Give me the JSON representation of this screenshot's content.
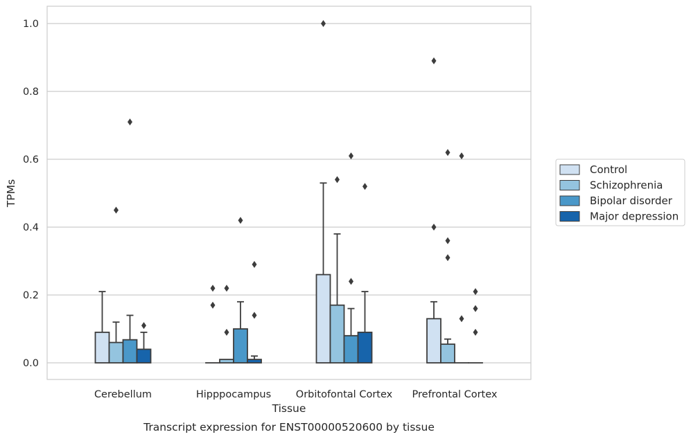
{
  "chart_data": {
    "type": "bar",
    "title": "Transcript expression for ENST00000520600 by tissue",
    "xlabel": "Tissue",
    "ylabel": "TPMs",
    "ylim": [
      -0.048,
      1.05
    ],
    "yticks": [
      0.0,
      0.2,
      0.4,
      0.6,
      0.8,
      1.0
    ],
    "ytick_labels": [
      "0.0",
      "0.2",
      "0.4",
      "0.6",
      "0.8",
      "1.0"
    ],
    "grid": "horizontal",
    "legend_position": "right",
    "categories": [
      "Cerebellum",
      "Hipppocampus",
      "Orbitofontal Cortex",
      "Prefrontal Cortex"
    ],
    "series": [
      {
        "name": "Control",
        "color": "#d0e1f2",
        "values": [
          0.09,
          0.0,
          0.26,
          0.13
        ],
        "whisker_top": [
          0.21,
          0.0,
          0.53,
          0.18
        ],
        "outliers": [
          [],
          [
            0.17,
            0.22
          ],
          [
            1.0
          ],
          [
            0.89,
            0.4
          ]
        ]
      },
      {
        "name": "Schizophrenia",
        "color": "#94c4df",
        "values": [
          0.06,
          0.01,
          0.17,
          0.055
        ],
        "whisker_top": [
          0.12,
          0.01,
          0.38,
          0.07
        ],
        "outliers": [
          [
            0.45
          ],
          [
            0.09,
            0.22
          ],
          [
            0.54
          ],
          [
            0.62,
            0.36,
            0.31
          ]
        ]
      },
      {
        "name": "Bipolar disorder",
        "color": "#4a98c9",
        "values": [
          0.068,
          0.1,
          0.08,
          0.0
        ],
        "whisker_top": [
          0.14,
          0.18,
          0.16,
          0.0
        ],
        "outliers": [
          [
            0.71
          ],
          [
            0.42
          ],
          [
            0.24,
            0.61
          ],
          [
            0.61,
            0.13
          ]
        ]
      },
      {
        "name": "Major depression",
        "color": "#1764ab",
        "values": [
          0.04,
          0.01,
          0.09,
          0.0
        ],
        "whisker_top": [
          0.09,
          0.02,
          0.21,
          0.0
        ],
        "outliers": [
          [
            0.11
          ],
          [
            0.14,
            0.29
          ],
          [
            0.52
          ],
          [
            0.21,
            0.16,
            0.09
          ]
        ]
      }
    ]
  }
}
